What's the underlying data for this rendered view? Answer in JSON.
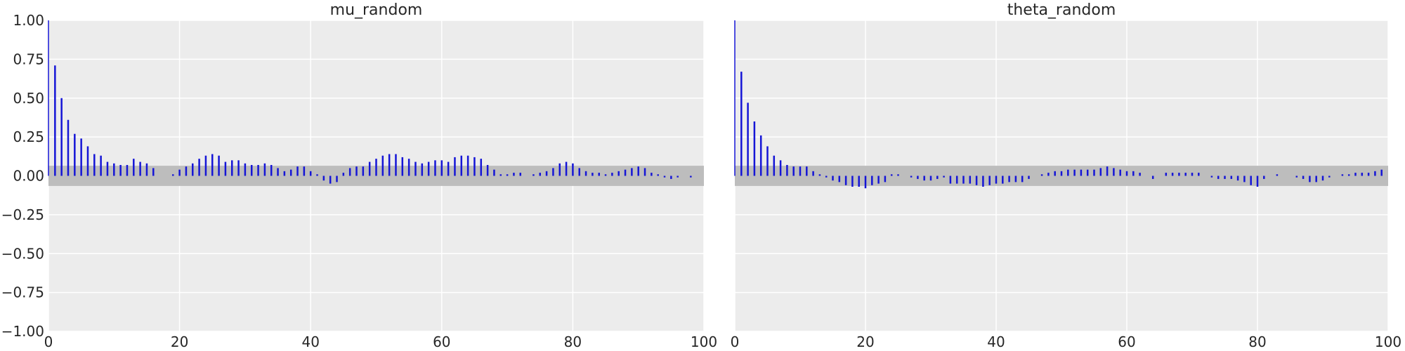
{
  "chart_data": [
    {
      "type": "bar",
      "title": "mu_random",
      "xlabel": "",
      "ylabel": "",
      "xlim": [
        0,
        100
      ],
      "ylim": [
        -1.0,
        1.0
      ],
      "xticks": [
        "0",
        "20",
        "40",
        "60",
        "80",
        "100"
      ],
      "yticks": [
        "1.00",
        "0.75",
        "0.50",
        "0.25",
        "0.00",
        "−0.25",
        "−0.50",
        "−0.75",
        "−1.00"
      ],
      "grid": true,
      "confidence_band": [
        -0.065,
        0.065
      ],
      "lags": [
        0,
        1,
        2,
        3,
        4,
        5,
        6,
        7,
        8,
        9,
        10,
        11,
        12,
        13,
        14,
        15,
        16,
        17,
        18,
        19,
        20,
        21,
        22,
        23,
        24,
        25,
        26,
        27,
        28,
        29,
        30,
        31,
        32,
        33,
        34,
        35,
        36,
        37,
        38,
        39,
        40,
        41,
        42,
        43,
        44,
        45,
        46,
        47,
        48,
        49,
        50,
        51,
        52,
        53,
        54,
        55,
        56,
        57,
        58,
        59,
        60,
        61,
        62,
        63,
        64,
        65,
        66,
        67,
        68,
        69,
        70,
        71,
        72,
        73,
        74,
        75,
        76,
        77,
        78,
        79,
        80,
        81,
        82,
        83,
        84,
        85,
        86,
        87,
        88,
        89,
        90,
        91,
        92,
        93,
        94,
        95,
        96,
        97,
        98,
        99
      ],
      "values": [
        1.0,
        0.71,
        0.5,
        0.36,
        0.27,
        0.24,
        0.19,
        0.14,
        0.13,
        0.09,
        0.08,
        0.07,
        0.07,
        0.11,
        0.09,
        0.08,
        0.05,
        0.0,
        0.0,
        0.01,
        0.04,
        0.06,
        0.08,
        0.11,
        0.13,
        0.14,
        0.13,
        0.09,
        0.1,
        0.1,
        0.08,
        0.07,
        0.07,
        0.08,
        0.07,
        0.05,
        0.03,
        0.04,
        0.06,
        0.06,
        0.03,
        0.01,
        -0.03,
        -0.05,
        -0.04,
        0.02,
        0.05,
        0.06,
        0.06,
        0.09,
        0.11,
        0.13,
        0.14,
        0.14,
        0.12,
        0.11,
        0.09,
        0.08,
        0.09,
        0.1,
        0.1,
        0.09,
        0.12,
        0.13,
        0.13,
        0.12,
        0.11,
        0.07,
        0.04,
        0.01,
        0.01,
        0.02,
        0.02,
        0.0,
        0.01,
        0.02,
        0.03,
        0.05,
        0.08,
        0.09,
        0.08,
        0.05,
        0.03,
        0.02,
        0.02,
        0.01,
        0.02,
        0.03,
        0.04,
        0.05,
        0.06,
        0.05,
        0.02,
        0.01,
        -0.01,
        -0.02,
        -0.01,
        0.0,
        -0.01,
        0.0
      ],
      "bar_color": "#1515d6",
      "band_color": "#bdbdbd",
      "background": "#ececec"
    },
    {
      "type": "bar",
      "title": "theta_random",
      "xlabel": "",
      "ylabel": "",
      "xlim": [
        0,
        100
      ],
      "ylim": [
        -1.0,
        1.0
      ],
      "xticks": [
        "0",
        "20",
        "40",
        "60",
        "80",
        "100"
      ],
      "grid": true,
      "confidence_band": [
        -0.065,
        0.065
      ],
      "lags": [
        0,
        1,
        2,
        3,
        4,
        5,
        6,
        7,
        8,
        9,
        10,
        11,
        12,
        13,
        14,
        15,
        16,
        17,
        18,
        19,
        20,
        21,
        22,
        23,
        24,
        25,
        26,
        27,
        28,
        29,
        30,
        31,
        32,
        33,
        34,
        35,
        36,
        37,
        38,
        39,
        40,
        41,
        42,
        43,
        44,
        45,
        46,
        47,
        48,
        49,
        50,
        51,
        52,
        53,
        54,
        55,
        56,
        57,
        58,
        59,
        60,
        61,
        62,
        63,
        64,
        65,
        66,
        67,
        68,
        69,
        70,
        71,
        72,
        73,
        74,
        75,
        76,
        77,
        78,
        79,
        80,
        81,
        82,
        83,
        84,
        85,
        86,
        87,
        88,
        89,
        90,
        91,
        92,
        93,
        94,
        95,
        96,
        97,
        98,
        99
      ],
      "values": [
        1.0,
        0.67,
        0.47,
        0.35,
        0.26,
        0.19,
        0.13,
        0.1,
        0.07,
        0.06,
        0.06,
        0.06,
        0.03,
        0.01,
        -0.01,
        -0.03,
        -0.04,
        -0.06,
        -0.07,
        -0.07,
        -0.08,
        -0.06,
        -0.05,
        -0.04,
        0.01,
        0.01,
        0.0,
        -0.01,
        -0.02,
        -0.03,
        -0.03,
        -0.02,
        -0.01,
        -0.05,
        -0.05,
        -0.05,
        -0.05,
        -0.06,
        -0.07,
        -0.06,
        -0.05,
        -0.05,
        -0.04,
        -0.04,
        -0.04,
        -0.02,
        0.0,
        0.01,
        0.02,
        0.03,
        0.03,
        0.04,
        0.04,
        0.04,
        0.04,
        0.04,
        0.05,
        0.06,
        0.05,
        0.04,
        0.03,
        0.03,
        0.02,
        0.0,
        -0.02,
        0.0,
        0.02,
        0.02,
        0.02,
        0.02,
        0.02,
        0.02,
        0.0,
        -0.01,
        -0.02,
        -0.02,
        -0.02,
        -0.03,
        -0.04,
        -0.06,
        -0.07,
        -0.02,
        0.0,
        0.01,
        0.0,
        0.0,
        -0.01,
        -0.02,
        -0.04,
        -0.04,
        -0.03,
        -0.01,
        0.0,
        0.01,
        0.01,
        0.02,
        0.02,
        0.02,
        0.03,
        0.04
      ],
      "bar_color": "#1515d6",
      "band_color": "#bdbdbd",
      "background": "#ececec"
    }
  ]
}
